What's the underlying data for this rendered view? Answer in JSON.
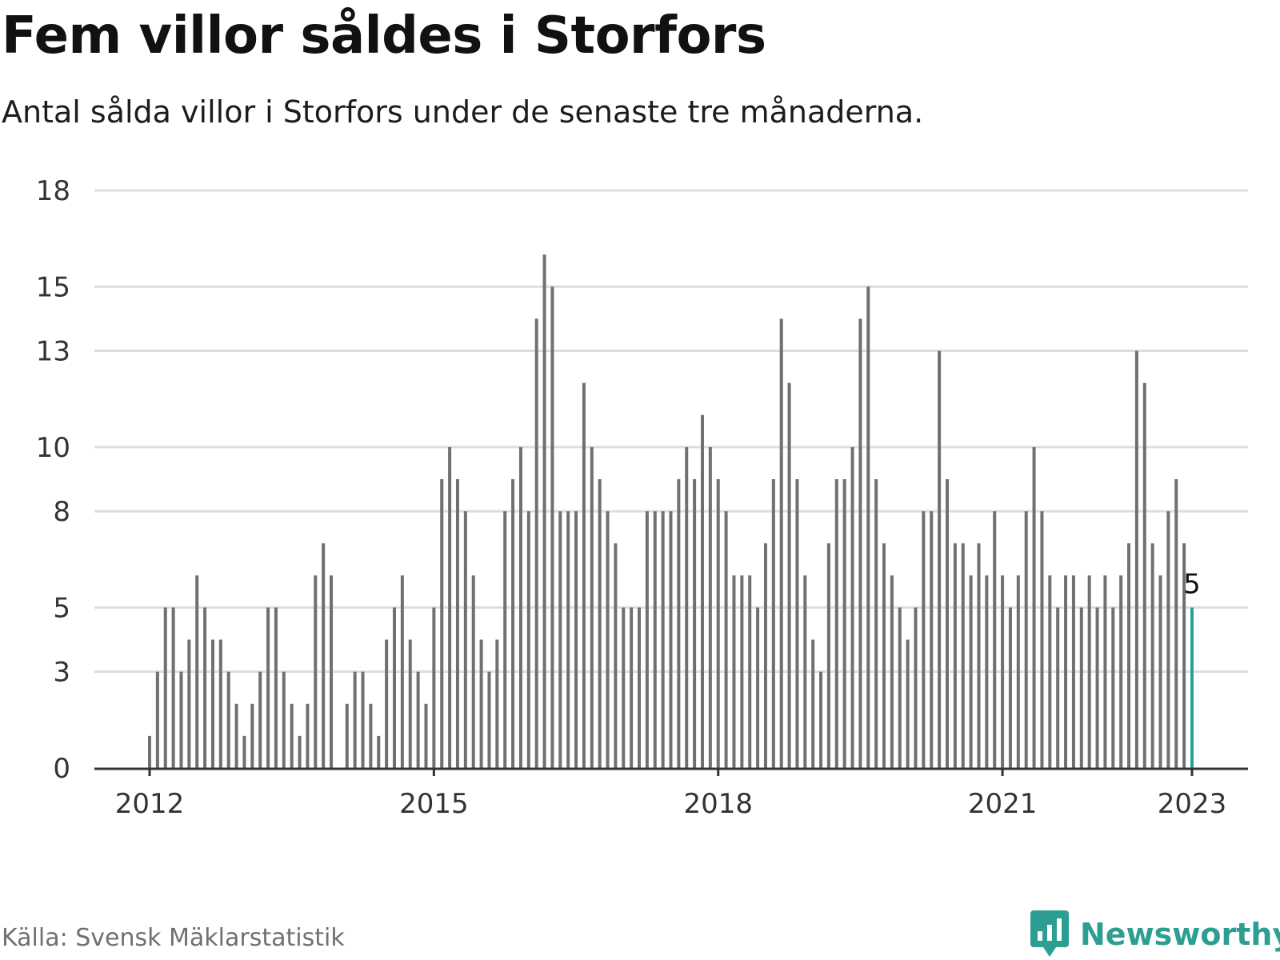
{
  "title": "Fem villor såldes i Storfors",
  "subtitle": "Antal sålda villor i Storfors under de senaste tre månaderna.",
  "source": "Källa: Svensk Mäklarstatistik",
  "brand": "Newsworthy",
  "colors": {
    "bar": "#707070",
    "highlight": "#2aa198",
    "grid": "#dddddd",
    "axis": "#333333",
    "brand": "#2d9e92"
  },
  "chart_data": {
    "type": "bar",
    "x_start": "2012-01",
    "x_end": "2023-01",
    "x_ticks": [
      "2012",
      "2015",
      "2018",
      "2021",
      "2023"
    ],
    "y_ticks": [
      0,
      3,
      5,
      8,
      10,
      13,
      15,
      18
    ],
    "ylim": [
      0,
      17.5
    ],
    "grid": true,
    "highlight_label": "5",
    "series": [
      {
        "values": [
          1,
          3,
          5,
          5,
          3,
          4,
          6,
          5,
          4,
          4,
          3,
          2,
          1,
          2,
          3,
          5,
          5,
          3,
          2,
          1,
          2,
          6,
          7,
          6,
          null,
          2,
          3,
          3,
          2,
          1,
          4,
          5,
          6,
          4,
          3,
          2,
          5,
          9,
          10,
          9,
          8,
          6,
          4,
          3,
          4,
          8,
          9,
          10,
          8,
          14,
          16,
          15,
          8,
          8,
          8,
          12,
          10,
          9,
          8,
          7,
          5,
          5,
          5,
          8,
          8,
          8,
          8,
          9,
          10,
          9,
          11,
          10,
          9,
          8,
          6,
          6,
          6,
          5,
          7,
          9,
          14,
          12,
          9,
          6,
          4,
          3,
          7,
          9,
          9,
          10,
          14,
          15,
          9,
          7,
          6,
          5,
          4,
          5,
          8,
          8,
          13,
          9,
          7,
          7,
          6,
          7,
          6,
          8,
          6,
          5,
          6,
          8,
          10,
          8,
          6,
          5,
          6,
          6,
          5,
          6,
          5,
          6,
          5,
          6,
          7,
          13,
          12,
          7,
          6,
          8,
          9,
          7,
          5
        ]
      }
    ]
  }
}
